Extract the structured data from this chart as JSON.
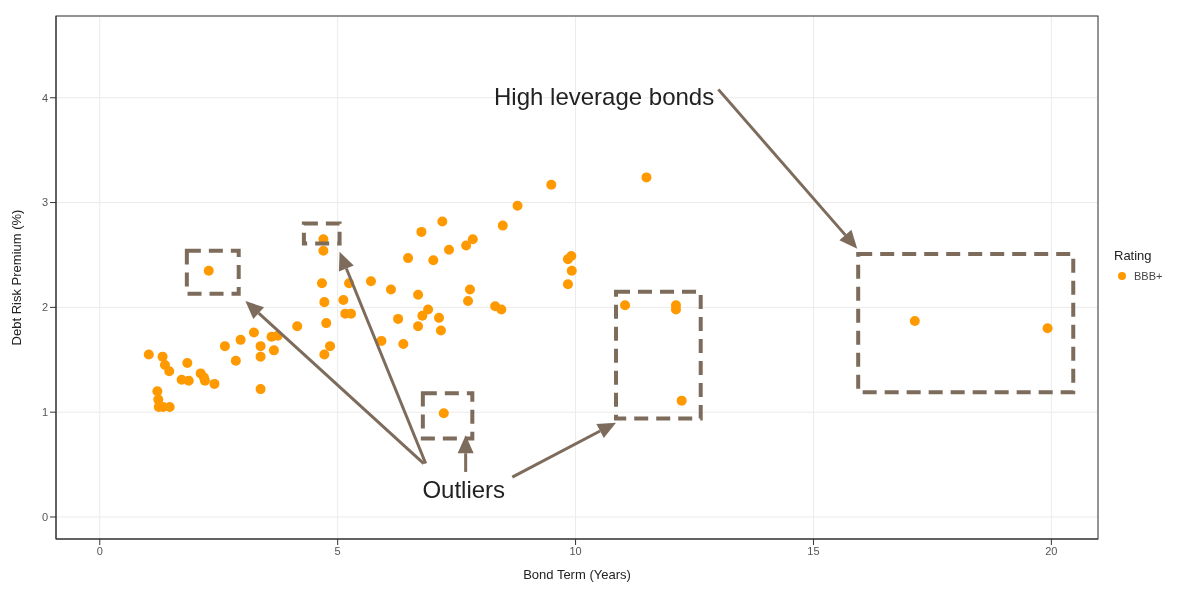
{
  "chart_data": {
    "type": "scatter",
    "xlabel": "Bond Term (Years)",
    "ylabel": "Debt Risk Premium (%)",
    "legend_title": "Rating",
    "legend": "right",
    "grid": true,
    "marker": "circle",
    "xlim": [
      -0.92,
      20.98
    ],
    "ylim": [
      -0.21,
      4.78
    ],
    "xticks": [
      0,
      5,
      10,
      15,
      20
    ],
    "yticks": [
      0,
      1,
      2,
      3,
      4
    ],
    "annotations": [
      "High leverage bonds",
      "Outliers"
    ],
    "series": [
      {
        "name": "BBB+",
        "color": "#ff9900",
        "x": [
          1.03,
          1.32,
          1.37,
          1.46,
          1.84,
          1.72,
          1.87,
          2.12,
          2.19,
          2.21,
          2.41,
          1.21,
          1.23,
          1.24,
          1.33,
          1.47,
          2.63,
          2.96,
          3.24,
          3.38,
          3.38,
          2.86,
          3.61,
          3.74,
          3.66,
          4.15,
          3.38,
          4.72,
          4.7,
          4.7,
          4.67,
          4.72,
          4.76,
          4.84,
          5.24,
          5.12,
          5.16,
          5.28,
          5.7,
          6.12,
          5.92,
          6.27,
          6.38,
          6.48,
          6.69,
          6.69,
          6.76,
          7.01,
          6.9,
          6.78,
          7.13,
          7.17,
          7.2,
          7.34,
          7.7,
          7.84,
          7.78,
          7.74,
          8.31,
          8.44,
          8.47,
          8.78,
          9.49,
          11.49,
          9.84,
          9.91,
          9.92,
          9.84,
          11.04,
          12.11,
          12.11,
          7.23,
          2.29,
          12.23,
          17.13,
          19.92
        ],
        "values": [
          1.55,
          1.53,
          1.45,
          1.39,
          1.47,
          1.31,
          1.3,
          1.37,
          1.33,
          1.3,
          1.27,
          1.2,
          1.12,
          1.05,
          1.05,
          1.05,
          1.63,
          1.69,
          1.76,
          1.63,
          1.53,
          1.49,
          1.72,
          1.73,
          1.59,
          1.82,
          1.22,
          1.55,
          2.65,
          2.54,
          2.23,
          2.05,
          1.85,
          1.63,
          2.23,
          2.07,
          1.94,
          1.94,
          2.25,
          2.17,
          1.68,
          1.89,
          1.65,
          2.47,
          2.12,
          1.82,
          2.72,
          2.45,
          1.98,
          1.92,
          1.9,
          1.78,
          2.82,
          2.55,
          2.59,
          2.65,
          2.17,
          2.06,
          2.01,
          1.98,
          2.78,
          2.97,
          3.17,
          3.24,
          2.46,
          2.49,
          2.35,
          2.22,
          2.02,
          2.02,
          1.98,
          0.99,
          2.35,
          1.11,
          1.87,
          1.8
        ]
      }
    ]
  }
}
